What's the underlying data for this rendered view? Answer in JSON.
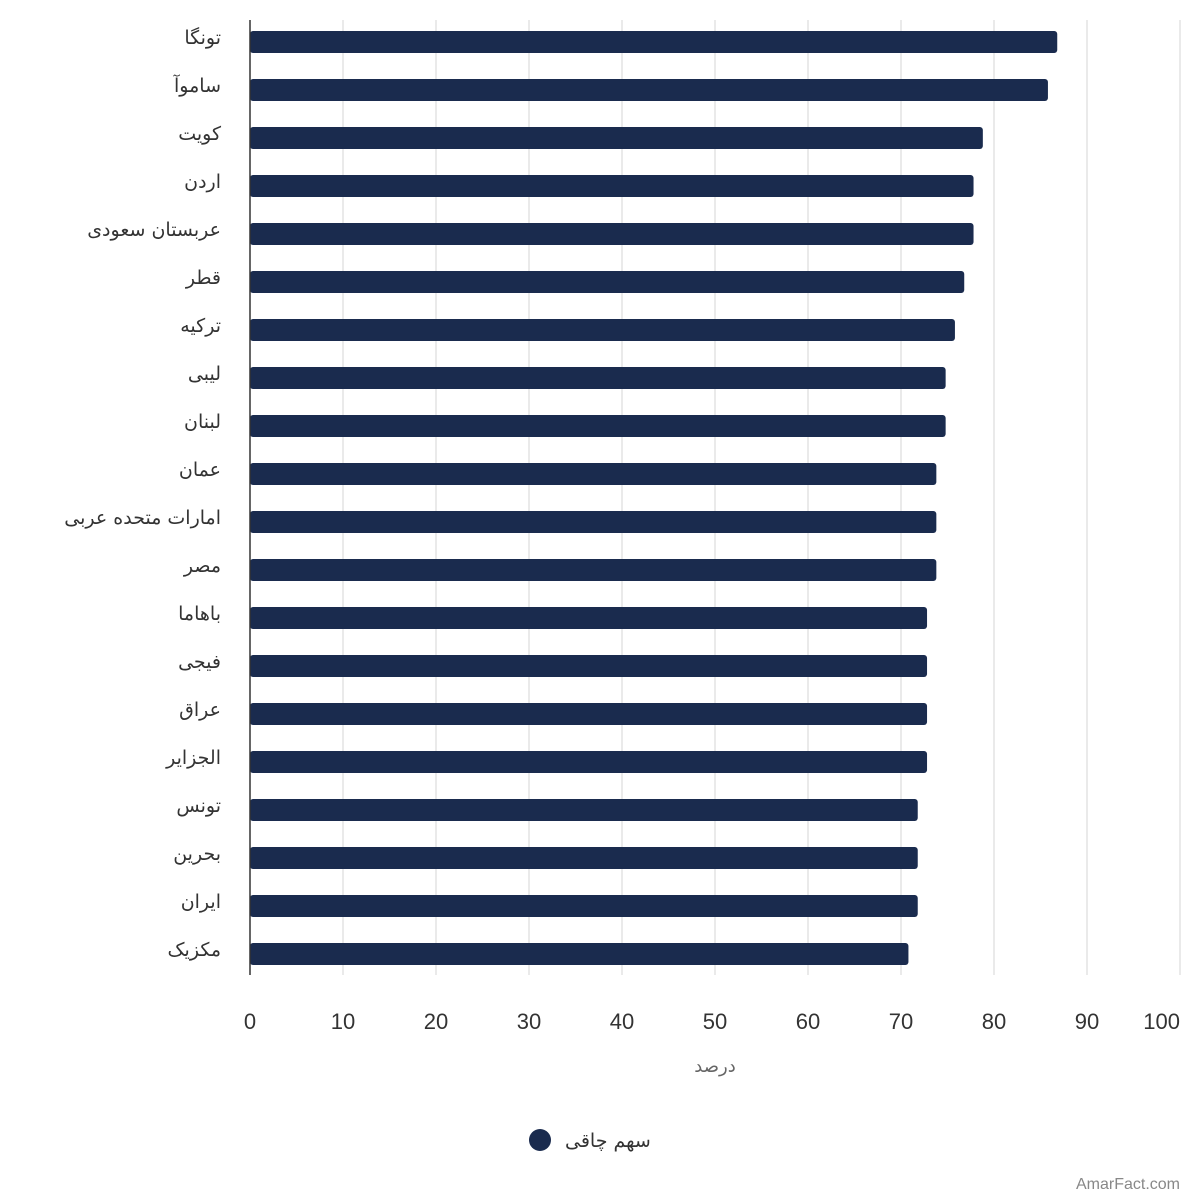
{
  "chart_data": {
    "type": "bar",
    "orientation": "horizontal",
    "categories": [
      "تونگا",
      "ساموآ",
      "کویت",
      "اردن",
      "عربستان سعودی",
      "قطر",
      "ترکیه",
      "لیبی",
      "لبنان",
      "عمان",
      "امارات متحده عربی",
      "مصر",
      "باهاما",
      "فیجی",
      "عراق",
      "الجزایر",
      "تونس",
      "بحرین",
      "ایران",
      "مکزیک"
    ],
    "series": [
      {
        "name": "سهم چاقی",
        "color": "#1a2b4e",
        "values": [
          86.8,
          85.8,
          78.8,
          77.8,
          77.8,
          76.8,
          75.8,
          74.8,
          74.8,
          73.8,
          73.8,
          73.8,
          72.8,
          72.8,
          72.8,
          72.8,
          71.8,
          71.8,
          71.8,
          70.8
        ]
      }
    ],
    "xlim": [
      0,
      100
    ],
    "xticks": [
      0,
      10,
      20,
      30,
      40,
      50,
      60,
      70,
      80,
      90,
      100
    ],
    "xlabel": "درصد",
    "grid": true,
    "legend_position": "bottom-center"
  },
  "watermark": "AmarFact.com"
}
